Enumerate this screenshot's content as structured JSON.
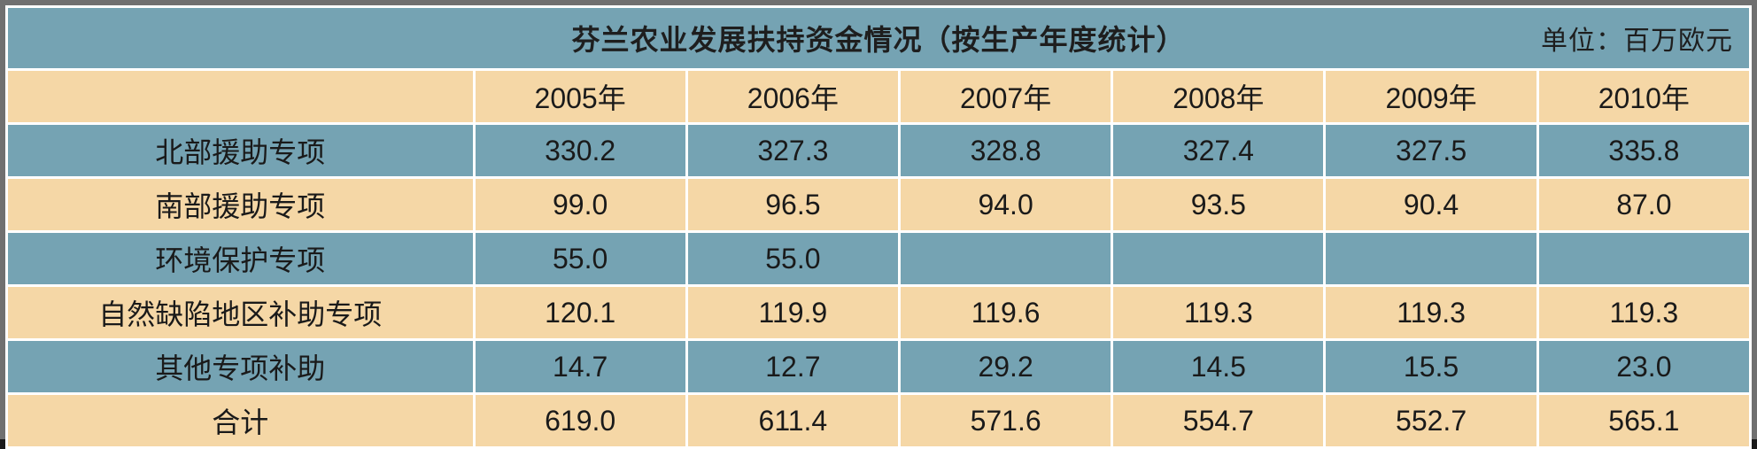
{
  "chart_data": {
    "type": "table",
    "title": "芬兰农业发展扶持资金情况（按生产年度统计）",
    "unit": "单位：百万欧元",
    "columns": [
      "2005年",
      "2006年",
      "2007年",
      "2008年",
      "2009年",
      "2010年"
    ],
    "rows": [
      {
        "label": "北部援助专项",
        "values": [
          "330.2",
          "327.3",
          "328.8",
          "327.4",
          "327.5",
          "335.8"
        ]
      },
      {
        "label": "南部援助专项",
        "values": [
          "99.0",
          "96.5",
          "94.0",
          "93.5",
          "90.4",
          "87.0"
        ]
      },
      {
        "label": "环境保护专项",
        "values": [
          "55.0",
          "55.0",
          "",
          "",
          "",
          ""
        ]
      },
      {
        "label": "自然缺陷地区补助专项",
        "values": [
          "120.1",
          "119.9",
          "119.6",
          "119.3",
          "119.3",
          "119.3"
        ]
      },
      {
        "label": "其他专项补助",
        "values": [
          "14.7",
          "12.7",
          "29.2",
          "14.5",
          "15.5",
          "23.0"
        ]
      },
      {
        "label": "合计",
        "values": [
          "619.0",
          "611.4",
          "571.6",
          "554.7",
          "552.7",
          "565.1"
        ]
      }
    ]
  },
  "colors": {
    "blue_band": "#75a3b3",
    "tan_band": "#f5d7a6",
    "grid": "#ffffff"
  }
}
